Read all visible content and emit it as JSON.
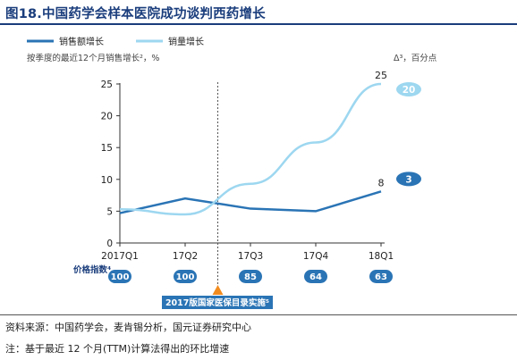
{
  "figure": {
    "title": "图18.中国药学会样本医院成功谈判西药增长",
    "subtitle": "按季度的最近12个月销售增长²，%",
    "delta_note": "Δ³，百分点",
    "source": "资料来源：中国药学会，麦肯锡分析，国元证券研究中心",
    "note": "注：基于最近 12 个月(TTM)计算法得出的环比增速",
    "price_index_label": "价格指数⁴",
    "event_label": "2017版国家医保目录实施⁵"
  },
  "chart_data": {
    "type": "line",
    "categories": [
      "2017Q1",
      "17Q2",
      "17Q3",
      "17Q4",
      "18Q1"
    ],
    "series": [
      {
        "name": "销售额增长",
        "color": "#2a74b5",
        "values": [
          4.7,
          7.0,
          5.4,
          5.0,
          8.1
        ]
      },
      {
        "name": "销量增长",
        "color": "#9dd7f0",
        "values": [
          5.3,
          4.5,
          9.3,
          15.8,
          25.0
        ]
      }
    ],
    "end_labels": [
      "8",
      "25"
    ],
    "delta_badges": [
      {
        "series": "销售额增长",
        "value": "3",
        "color": "#2a74b5"
      },
      {
        "series": "销量增长",
        "value": "20",
        "color": "#9dd7f0"
      }
    ],
    "price_index": [
      "100",
      "100",
      "85",
      "64",
      "63"
    ],
    "yticks": [
      "0",
      "5",
      "10",
      "15",
      "20",
      "25"
    ],
    "ylim": [
      0,
      25
    ],
    "grid": false,
    "legend_position": "top-left",
    "event_between": [
      "17Q2",
      "17Q3"
    ],
    "event_fraction": 0.5
  }
}
